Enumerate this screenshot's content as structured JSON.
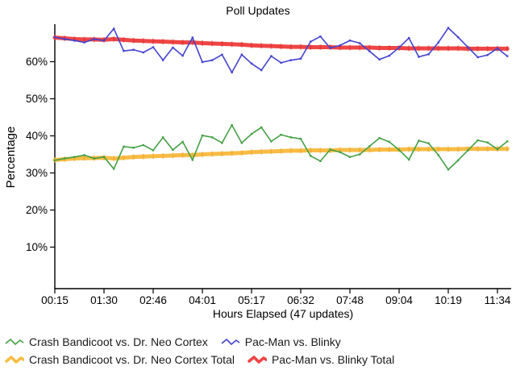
{
  "title": "Poll Updates",
  "chart_data": {
    "type": "line",
    "title": "Poll Updates",
    "xlabel": "Hours Elapsed (47 updates)",
    "ylabel": "Percentage",
    "x_unit": "update index 1-47, one poll update every ~15 minutes",
    "x_tick_indices": [
      1,
      6,
      11,
      16,
      21,
      26,
      31,
      36,
      41,
      46
    ],
    "x_tick_labels": [
      "00:15",
      "01:30",
      "02:46",
      "04:01",
      "05:17",
      "06:32",
      "07:48",
      "09:04",
      "10:19",
      "11:34"
    ],
    "y_ticks": [
      10,
      20,
      30,
      40,
      50,
      60
    ],
    "y_tick_suffix": "%",
    "ylim": [
      0,
      70
    ],
    "grid": false,
    "legend_position": "bottom",
    "series": [
      {
        "name": "Crash Bandicoot vs. Dr. Neo Cortex",
        "color": "#44a044",
        "width": 1.6,
        "values": [
          33.4,
          33.9,
          34.3,
          34.8,
          33.9,
          34.3,
          31.1,
          37.1,
          36.8,
          37.5,
          36.1,
          39.6,
          36.2,
          38.4,
          33.5,
          40.1,
          39.6,
          38.1,
          42.9,
          38.1,
          40.5,
          42.3,
          38.5,
          40.3,
          39.6,
          39.2,
          34.6,
          33.2,
          36.3,
          35.6,
          34.3,
          35.0,
          37.2,
          39.4,
          38.4,
          36.2,
          33.6,
          38.7,
          38.0,
          34.8,
          30.9,
          33.4,
          36.1,
          38.8,
          38.2,
          36.4,
          38.5
        ]
      },
      {
        "name": "Pac-Man vs. Blinky",
        "color": "#4343cf",
        "width": 1.6,
        "values": [
          66.6,
          66.1,
          65.7,
          65.2,
          66.1,
          65.7,
          68.9,
          62.9,
          63.2,
          62.5,
          63.9,
          60.4,
          63.8,
          61.6,
          66.5,
          59.9,
          60.4,
          61.9,
          57.1,
          61.9,
          59.5,
          57.7,
          61.5,
          59.7,
          60.4,
          60.8,
          65.4,
          66.8,
          63.7,
          64.4,
          65.7,
          65.0,
          62.8,
          60.6,
          61.6,
          63.8,
          66.4,
          61.3,
          62.0,
          65.2,
          69.1,
          66.6,
          63.9,
          61.2,
          61.8,
          63.6,
          61.5
        ]
      },
      {
        "name": "Crash Bandicoot vs. Dr. Neo Cortex Total",
        "color": "#f8bc45",
        "marker": "#eca32b",
        "width": 5,
        "values": [
          33.5,
          33.7,
          33.9,
          34.0,
          34.0,
          34.1,
          33.9,
          34.1,
          34.3,
          34.4,
          34.5,
          34.6,
          34.7,
          34.8,
          34.8,
          35.0,
          35.1,
          35.2,
          35.3,
          35.4,
          35.6,
          35.7,
          35.8,
          35.9,
          36.0,
          36.0,
          36.1,
          36.1,
          36.1,
          36.2,
          36.2,
          36.2,
          36.2,
          36.3,
          36.3,
          36.3,
          36.4,
          36.4,
          36.4,
          36.4,
          36.4,
          36.4,
          36.5,
          36.5,
          36.5,
          36.5,
          36.5
        ]
      },
      {
        "name": "Pac-Man vs. Blinky Total",
        "color": "#ef4545",
        "marker": "#d92f2f",
        "width": 5,
        "values": [
          66.5,
          66.3,
          66.1,
          66.0,
          66.0,
          65.9,
          66.1,
          65.9,
          65.7,
          65.6,
          65.5,
          65.4,
          65.3,
          65.2,
          65.2,
          65.0,
          64.9,
          64.8,
          64.7,
          64.6,
          64.4,
          64.3,
          64.2,
          64.1,
          64.0,
          64.0,
          63.9,
          63.9,
          63.9,
          63.8,
          63.8,
          63.8,
          63.8,
          63.7,
          63.7,
          63.7,
          63.6,
          63.6,
          63.6,
          63.6,
          63.6,
          63.6,
          63.5,
          63.5,
          63.5,
          63.5,
          63.5
        ]
      }
    ]
  }
}
